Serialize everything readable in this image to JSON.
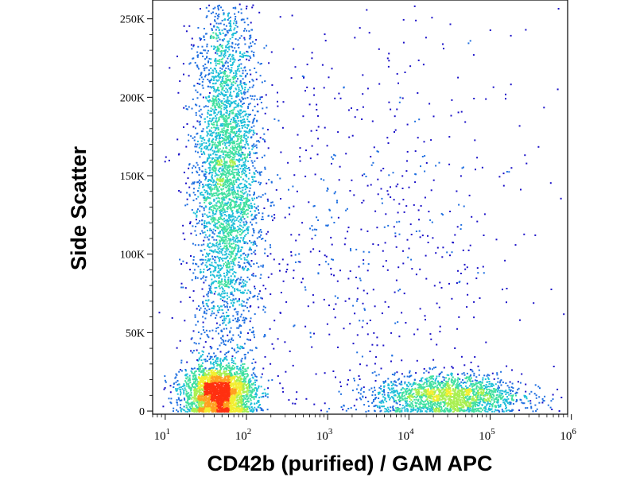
{
  "chart_data": {
    "type": "scatter",
    "style": "density pseudocolor dot plot",
    "xlabel": "CD42b (purified) / GAM APC",
    "ylabel": "Side Scatter",
    "x_scale": "log",
    "xlim": [
      7,
      900000
    ],
    "ylim": [
      -2000,
      262000
    ],
    "x_ticks": [
      {
        "value": 10,
        "base": "10",
        "exp": "1"
      },
      {
        "value": 100,
        "base": "10",
        "exp": "2"
      },
      {
        "value": 1000,
        "base": "10",
        "exp": "3"
      },
      {
        "value": 10000,
        "base": "10",
        "exp": "4"
      },
      {
        "value": 100000,
        "base": "10",
        "exp": "5"
      },
      {
        "value": 1000000,
        "base": "10",
        "exp": "6"
      }
    ],
    "y_ticks": [
      {
        "value": 0,
        "label": "0"
      },
      {
        "value": 50000,
        "label": "50K"
      },
      {
        "value": 100000,
        "label": "100K"
      },
      {
        "value": 150000,
        "label": "150K"
      },
      {
        "value": 200000,
        "label": "200K"
      },
      {
        "value": 250000,
        "label": "250K"
      }
    ],
    "grid": false,
    "density_colors": [
      "#1a10c8",
      "#1f6fe0",
      "#1fbfd9",
      "#40e0a0",
      "#a8ef50",
      "#f2ee30",
      "#ffa020",
      "#ff3010"
    ],
    "populations": [
      {
        "x_center": 55,
        "x_spread_decades": 0.2,
        "y_center": 150000,
        "y_spread": 60000,
        "relative_size": 0.42
      },
      {
        "x_center": 45,
        "x_spread_decades": 0.22,
        "y_center": 12000,
        "y_spread": 9000,
        "relative_size": 0.3
      },
      {
        "x_center": 30000,
        "x_spread_decades": 0.45,
        "y_center": 10000,
        "y_spread": 7000,
        "relative_size": 0.2
      },
      {
        "x_center": 3000,
        "x_spread_decades": 1.0,
        "y_center": 110000,
        "y_spread": 70000,
        "relative_size": 0.08
      }
    ]
  }
}
